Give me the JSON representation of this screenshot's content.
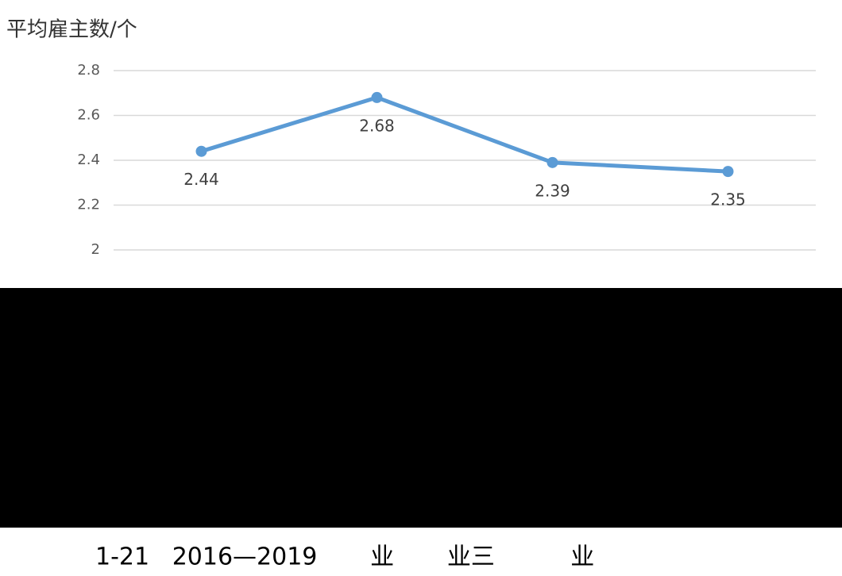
{
  "chart_data": {
    "type": "line",
    "y_label": "平均雇主数/个",
    "categories": [
      null,
      null,
      null,
      null
    ],
    "series": [
      {
        "name": null,
        "color": "#5b9bd5",
        "values": [
          2.44,
          2.68,
          2.39,
          2.35
        ]
      }
    ],
    "ylim": [
      1,
      2.8
    ],
    "yticks": [
      2,
      2.2,
      2.4,
      2.6,
      2.8
    ],
    "grid": true,
    "caption": "1-21   2016—2019       业       业三          业"
  }
}
